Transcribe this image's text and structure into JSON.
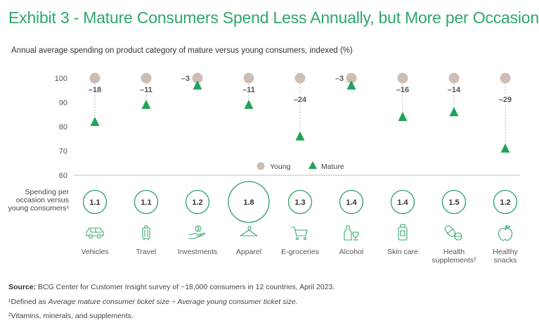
{
  "title": "Exhibit 3 - Mature Consumers Spend Less Annually, but More per Occasion",
  "subtitle": "Annual average spending on product category of mature versus young consumers, indexed (%)",
  "colors": {
    "title": "#2ea66c",
    "young": "#cdbdb3",
    "mature": "#20a35a",
    "circle": "#2aa166",
    "icon": "#3aa86a"
  },
  "chart_data": {
    "type": "scatter",
    "title": "Annual average spending on product category of mature versus young consumers, indexed (%)",
    "ylim": [
      60,
      100
    ],
    "yticks": [
      60,
      70,
      80,
      90,
      100
    ],
    "categories": [
      "Vehicles",
      "Travel",
      "Investments",
      "Apparel",
      "E-groceries",
      "Alcohol",
      "Skin care",
      "Health supplements²",
      "Healthy snacks"
    ],
    "series": [
      {
        "name": "Young",
        "marker": "circle",
        "values": [
          100,
          100,
          100,
          100,
          100,
          100,
          100,
          100,
          100
        ]
      },
      {
        "name": "Mature",
        "marker": "triangle",
        "values": [
          82,
          89,
          97,
          89,
          76,
          97,
          84,
          86,
          71
        ]
      }
    ],
    "differences": [
      "–18",
      "–11",
      "–3",
      "–11",
      "–24",
      "–3",
      "–16",
      "–14",
      "–29"
    ],
    "legend": [
      "Young",
      "Mature"
    ],
    "spending_label": [
      "Spending per",
      "occasion versus",
      "young consumers¹"
    ],
    "spending_ratio": [
      1.1,
      1.1,
      1.2,
      1.8,
      1.3,
      1.4,
      1.4,
      1.5,
      1.2
    ],
    "spending_ratio_text": [
      "1.1",
      "1.1",
      "1.2",
      "1.8",
      "1.3",
      "1.4",
      "1.4",
      "1.5",
      "1.2"
    ],
    "category_labels": [
      [
        "Vehicles"
      ],
      [
        "Travel"
      ],
      [
        "Investments"
      ],
      [
        "Apparel"
      ],
      [
        "E-groceries"
      ],
      [
        "Alcohol"
      ],
      [
        "Skin care"
      ],
      [
        "Health",
        "supplements²"
      ],
      [
        "Healthy",
        "snacks"
      ]
    ],
    "icons": [
      "car-icon",
      "suitcase-icon",
      "money-hand-icon",
      "hanger-icon",
      "cart-icon",
      "bottle-glass-icon",
      "lotion-icon",
      "pill-icon",
      "apple-icon"
    ]
  },
  "footer": {
    "source_label": "Source:",
    "source_text": " BCG Center for Customer Insight survey of ~18,000 consumers in 12 countries, April 2023.",
    "note1_prefix": "¹Defined as ",
    "note1_italic": "Average mature consumer ticket size ÷ Average young consumer ticket size.",
    "note2": "²Vitamins, minerals, and supplements."
  }
}
